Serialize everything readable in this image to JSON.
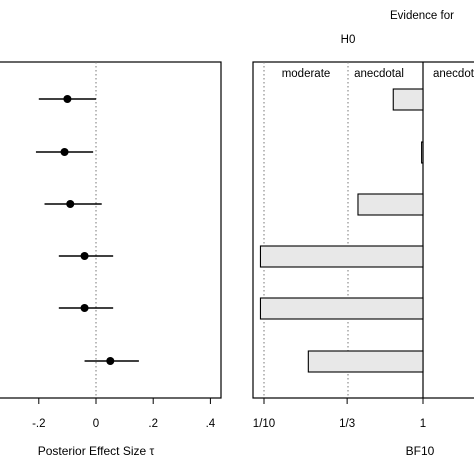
{
  "chart_data": [
    {
      "type": "scatter",
      "xlabel": "Posterior Effect Size τ",
      "xlim": [
        -0.35,
        0.43
      ],
      "xticks": [
        -0.2,
        0,
        0.2,
        0.4
      ],
      "xtick_labels": [
        "-.2",
        "0",
        ".2",
        ".4"
      ],
      "reference_line": 0,
      "points": [
        {
          "estimate": -0.1,
          "lower": -0.2,
          "upper": 0.0
        },
        {
          "estimate": -0.11,
          "lower": -0.21,
          "upper": -0.01
        },
        {
          "estimate": -0.09,
          "lower": -0.18,
          "upper": 0.02
        },
        {
          "estimate": -0.04,
          "lower": -0.13,
          "upper": 0.06
        },
        {
          "estimate": -0.04,
          "lower": -0.13,
          "upper": 0.06
        },
        {
          "estimate": 0.05,
          "lower": -0.04,
          "upper": 0.15
        }
      ]
    },
    {
      "type": "bar",
      "orientation": "horizontal",
      "xlabel": "BF10",
      "scale": "log",
      "xticks": [
        0.1,
        0.3333,
        1
      ],
      "xtick_labels": [
        "1/10",
        "1/3",
        "1"
      ],
      "bar_color": "#e8e8e8",
      "values": [
        0.65,
        0.98,
        0.39,
        0.095,
        0.095,
        0.19
      ],
      "regions": [
        "moderate",
        "anecdotal",
        "anecdotal"
      ],
      "evidence_header": "Evidence for",
      "hypothesis_label": "H0"
    }
  ]
}
